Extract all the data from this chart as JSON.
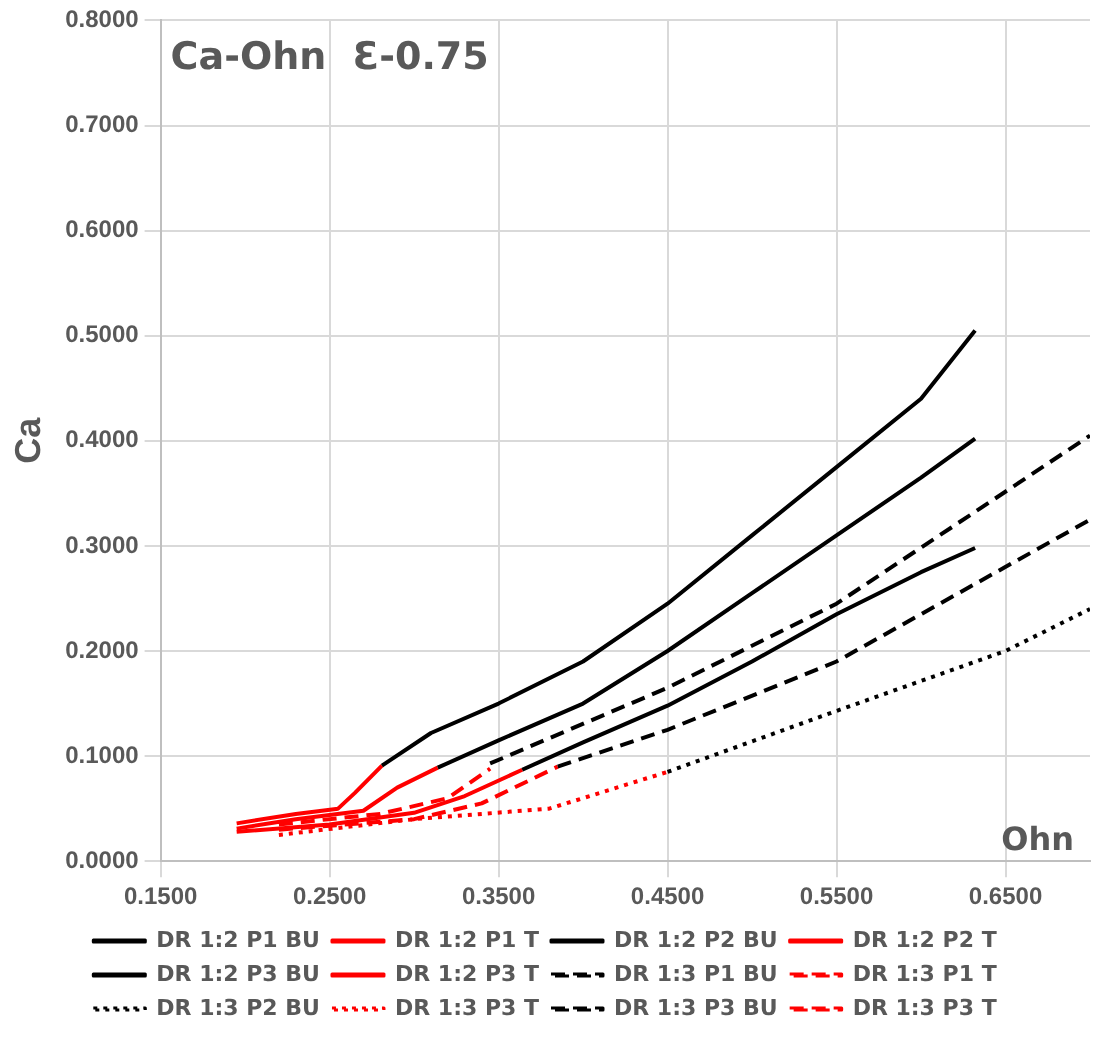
{
  "chart_data": {
    "type": "line",
    "title": "Ca-Ohn  Ɛ-0.75",
    "xlabel": "Ohn",
    "ylabel": "Ca",
    "xlim": [
      0.15,
      0.7
    ],
    "ylim": [
      0,
      0.8
    ],
    "xticks": [
      {
        "value": 0.15,
        "label": "0.1500"
      },
      {
        "value": 0.25,
        "label": "0.2500"
      },
      {
        "value": 0.35,
        "label": "0.3500"
      },
      {
        "value": 0.45,
        "label": "0.4500"
      },
      {
        "value": 0.55,
        "label": "0.5500"
      },
      {
        "value": 0.65,
        "label": "0.6500"
      }
    ],
    "yticks": [
      {
        "value": 0,
        "label": "0.0000"
      },
      {
        "value": 0.1,
        "label": "0.1000"
      },
      {
        "value": 0.2,
        "label": "0.2000"
      },
      {
        "value": 0.3,
        "label": "0.3000"
      },
      {
        "value": 0.4,
        "label": "0.4000"
      },
      {
        "value": 0.5,
        "label": "0.5000"
      },
      {
        "value": 0.6,
        "label": "0.6000"
      },
      {
        "value": 0.7,
        "label": "0.7000"
      },
      {
        "value": 0.8,
        "label": "0.8000"
      }
    ],
    "grid": true,
    "legend": "bottom",
    "marker": "none",
    "series": [
      {
        "name": "DR 1:2 P1 BU",
        "color": "#000000",
        "line_style": "solid",
        "x": [
          0.364,
          0.4,
          0.45,
          0.5,
          0.55,
          0.6,
          0.632
        ],
        "values": [
          0.087,
          0.113,
          0.148,
          0.19,
          0.235,
          0.275,
          0.298
        ]
      },
      {
        "name": "DR 1:2 P1 T",
        "color": "#ff0000",
        "line_style": "solid",
        "x": [
          0.195,
          0.25,
          0.3,
          0.33,
          0.364
        ],
        "values": [
          0.028,
          0.035,
          0.046,
          0.062,
          0.087
        ]
      },
      {
        "name": "DR 1:2 P2 BU",
        "color": "#000000",
        "line_style": "solid",
        "x": [
          0.314,
          0.35,
          0.4,
          0.45,
          0.5,
          0.55,
          0.6,
          0.632
        ],
        "values": [
          0.089,
          0.115,
          0.15,
          0.2,
          0.255,
          0.31,
          0.365,
          0.402
        ]
      },
      {
        "name": "DR 1:2 P2 T",
        "color": "#ff0000",
        "line_style": "solid",
        "x": [
          0.195,
          0.23,
          0.27,
          0.29,
          0.314
        ],
        "values": [
          0.031,
          0.04,
          0.048,
          0.07,
          0.089
        ]
      },
      {
        "name": "DR 1:2 P3 BU",
        "color": "#000000",
        "line_style": "solid",
        "x": [
          0.281,
          0.31,
          0.35,
          0.4,
          0.45,
          0.5,
          0.55,
          0.6,
          0.632
        ],
        "values": [
          0.091,
          0.122,
          0.15,
          0.19,
          0.245,
          0.31,
          0.375,
          0.44,
          0.505
        ]
      },
      {
        "name": "DR 1:2 P3 T",
        "color": "#ff0000",
        "line_style": "solid",
        "x": [
          0.195,
          0.23,
          0.255,
          0.265,
          0.281
        ],
        "values": [
          0.036,
          0.045,
          0.05,
          0.065,
          0.091
        ]
      },
      {
        "name": "DR 1:3 P1 BU",
        "color": "#000000",
        "line_style": "dashed",
        "x": [
          0.385,
          0.45,
          0.55,
          0.7
        ],
        "values": [
          0.09,
          0.125,
          0.19,
          0.325
        ]
      },
      {
        "name": "DR 1:3 P1 T",
        "color": "#ff0000",
        "line_style": "dashed",
        "x": [
          0.22,
          0.3,
          0.34,
          0.385
        ],
        "values": [
          0.03,
          0.04,
          0.055,
          0.09
        ]
      },
      {
        "name": "DR 1:3 P2 BU",
        "color": "#000000",
        "line_style": "dotted",
        "x": [
          0.45,
          0.55,
          0.65,
          0.7
        ],
        "values": [
          0.085,
          0.143,
          0.2,
          0.24
        ]
      },
      {
        "name": "DR 1:3 P3 T",
        "color": "#ff0000",
        "line_style": "dotted",
        "x": [
          0.22,
          0.3,
          0.38,
          0.45
        ],
        "values": [
          0.025,
          0.04,
          0.05,
          0.085
        ]
      },
      {
        "name": "DR 1:3 P3 BU",
        "color": "#000000",
        "line_style": "dashed",
        "x": [
          0.345,
          0.45,
          0.55,
          0.7
        ],
        "values": [
          0.093,
          0.165,
          0.245,
          0.405
        ]
      },
      {
        "name": "DR 1:3 P3 T",
        "color": "#ff0000",
        "line_style": "dashed",
        "x": [
          0.22,
          0.28,
          0.32,
          0.345
        ],
        "values": [
          0.035,
          0.045,
          0.06,
          0.088
        ]
      }
    ]
  }
}
